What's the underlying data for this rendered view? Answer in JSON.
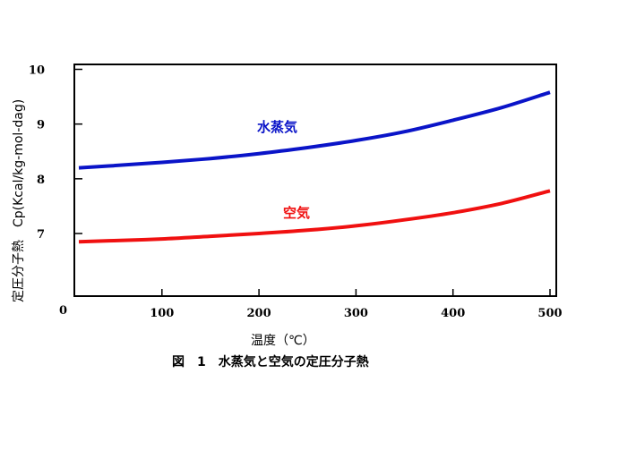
{
  "chart_data": {
    "type": "line",
    "title": "",
    "caption": "図　1　水蒸気と空気の定圧分子熱",
    "xlabel": "温度（℃）",
    "ylabel": "定圧分子熱　Cp(Kcal/kg-mol-dag)",
    "origin_label": "0",
    "xlim": [
      0,
      500
    ],
    "ylim": [
      6.0,
      10.0
    ],
    "x_ticks": [
      100,
      200,
      300,
      400,
      500
    ],
    "x_tick_labels": [
      "100",
      "200",
      "300",
      "400",
      "500"
    ],
    "y_ticks": [
      7,
      8,
      9,
      10
    ],
    "y_tick_labels": [
      "7",
      "8",
      "9",
      "10"
    ],
    "grid": false,
    "legend": "inline labels",
    "series": [
      {
        "name": "水蒸気",
        "color": "#0a14c8",
        "x": [
          0,
          50,
          100,
          150,
          200,
          250,
          300,
          350,
          400,
          450,
          500
        ],
        "y": [
          8.2,
          8.24,
          8.3,
          8.37,
          8.46,
          8.57,
          8.7,
          8.86,
          9.07,
          9.3,
          9.58
        ]
      },
      {
        "name": "空気",
        "color": "#f01010",
        "x": [
          0,
          50,
          100,
          150,
          200,
          250,
          300,
          350,
          400,
          450,
          500
        ],
        "y": [
          6.85,
          6.87,
          6.9,
          6.95,
          7.0,
          7.06,
          7.14,
          7.25,
          7.38,
          7.55,
          7.78
        ]
      }
    ]
  }
}
